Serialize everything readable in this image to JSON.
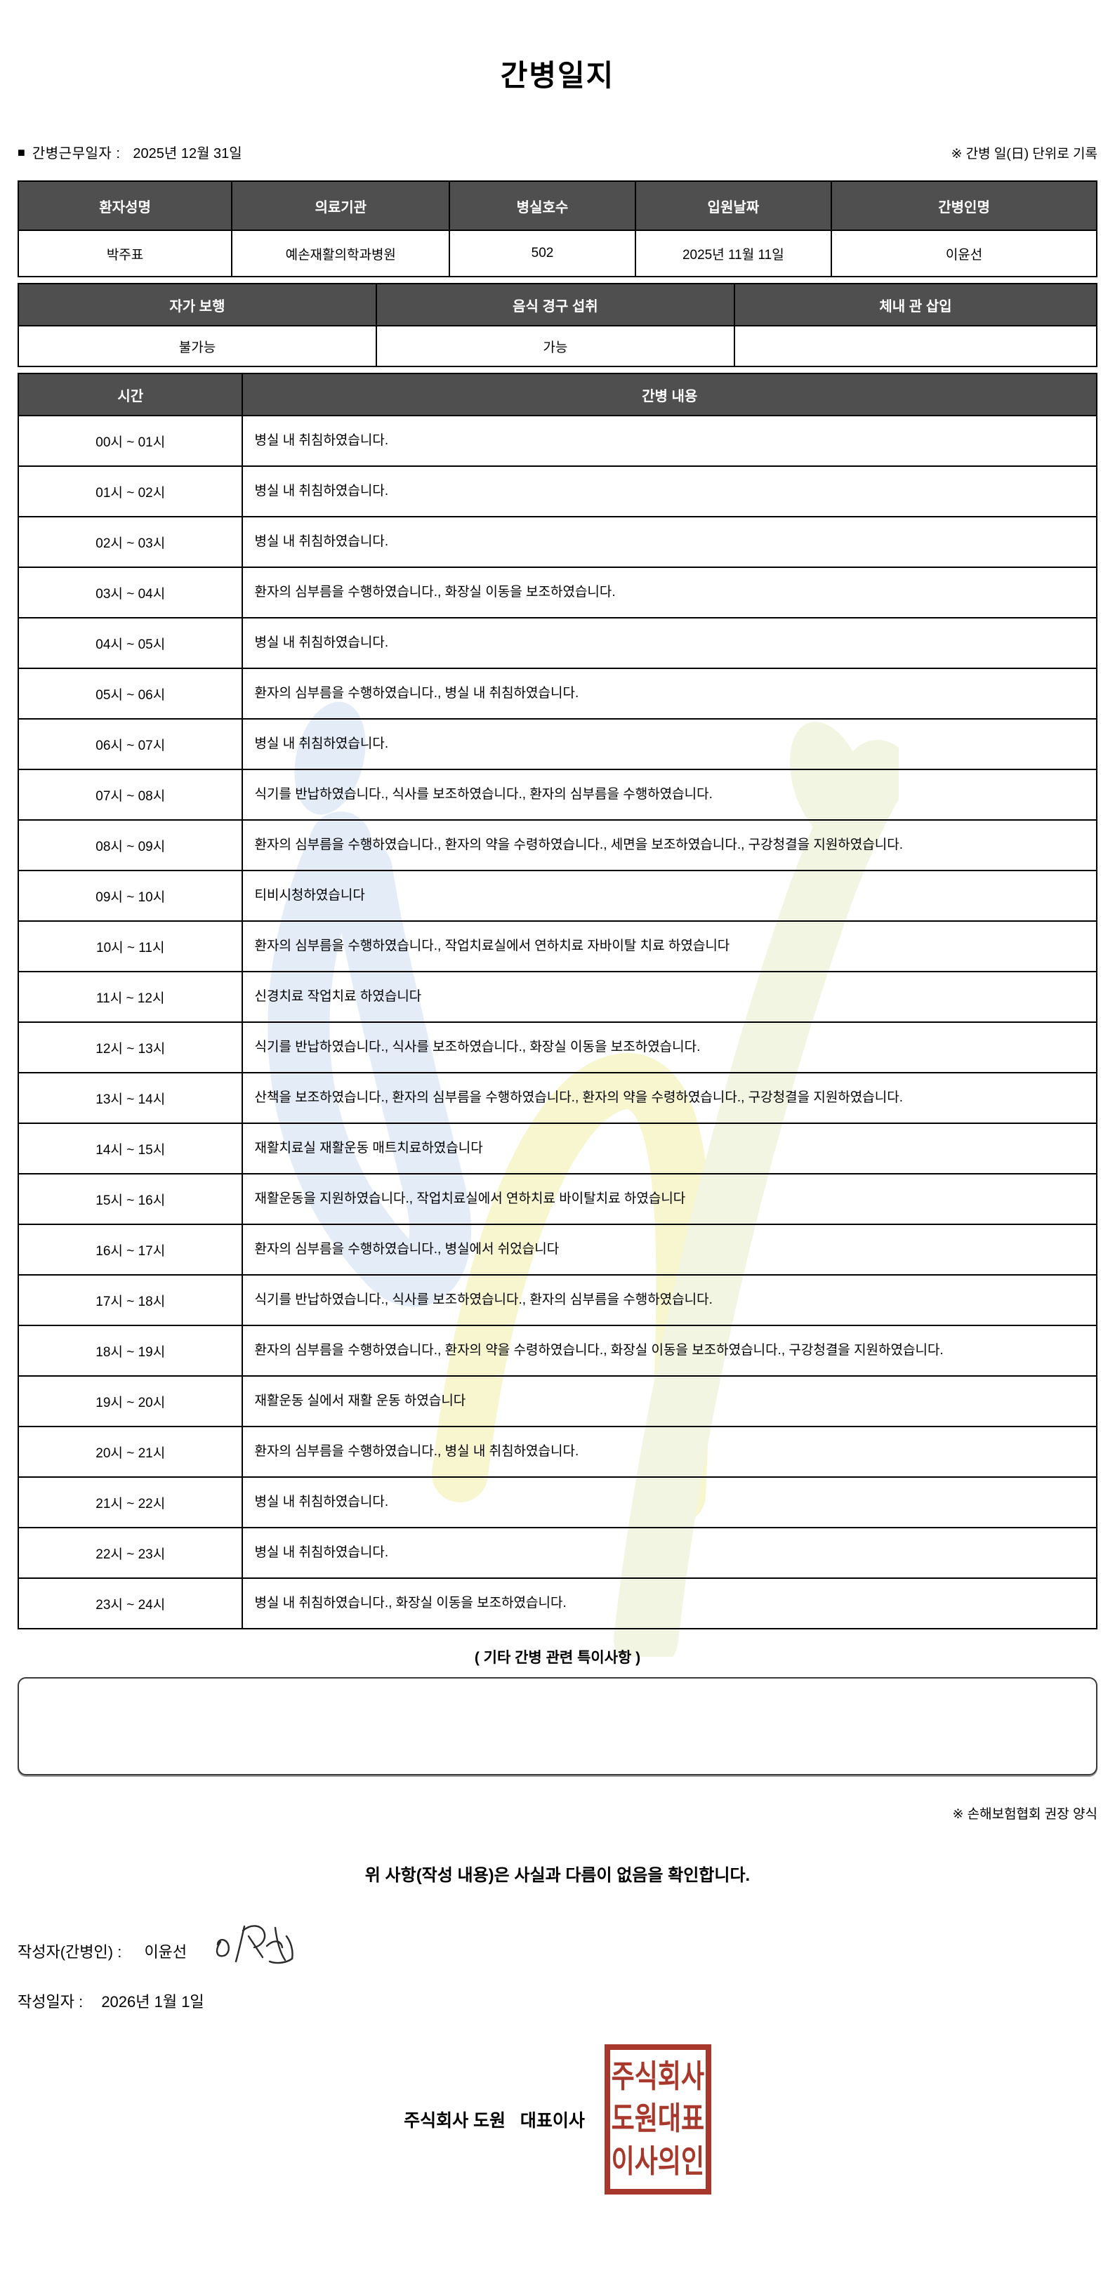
{
  "page": {
    "title": "간병일지",
    "work_date_marker": "■",
    "work_date_label": "간병근무일자  :",
    "work_date_value": "2025년 12월 31일",
    "unit_note": "※ 간병 일(日) 단위로 기록",
    "form_note": "※ 손해보험협회 권장 양식",
    "confirmation": "위 사항(작성 내용)은 사실과 다름이 없음을 확인합니다.",
    "writer_label": "작성자(간병인) : ",
    "writer_name": "이윤선",
    "date_label": "작성일자 : ",
    "date_value": "2026년 1월 1일",
    "company_line": "주식회사 도원   대표이사"
  },
  "info_table": {
    "headers": [
      "환자성명",
      "의료기관",
      "병실호수",
      "입원날짜",
      "간병인명"
    ],
    "values": [
      "박주표",
      "예손재활의학과병원",
      "502",
      "2025년 11월 11일",
      "이윤선"
    ]
  },
  "status_table": {
    "headers": [
      "자가 보행",
      "음식 경구 섭취",
      "체내 관 삽입"
    ],
    "values": [
      "불가능",
      "가능",
      ""
    ]
  },
  "care_table": {
    "headers": [
      "시간",
      "간병 내용"
    ],
    "rows": [
      {
        "time": "00시 ~ 01시",
        "content": "병실 내 취침하였습니다."
      },
      {
        "time": "01시 ~ 02시",
        "content": "병실 내 취침하였습니다."
      },
      {
        "time": "02시 ~ 03시",
        "content": "병실 내 취침하였습니다."
      },
      {
        "time": "03시 ~ 04시",
        "content": "환자의 심부름을 수행하였습니다., 화장실 이동을 보조하였습니다."
      },
      {
        "time": "04시 ~ 05시",
        "content": "병실 내 취침하였습니다."
      },
      {
        "time": "05시 ~ 06시",
        "content": "환자의 심부름을 수행하였습니다., 병실 내 취침하였습니다."
      },
      {
        "time": "06시 ~ 07시",
        "content": "병실 내 취침하였습니다."
      },
      {
        "time": "07시 ~ 08시",
        "content": "식기를 반납하였습니다., 식사를 보조하였습니다., 환자의 심부름을 수행하였습니다."
      },
      {
        "time": "08시 ~ 09시",
        "content": "환자의 심부름을 수행하였습니다., 환자의 약을 수령하였습니다., 세면을 보조하였습니다., 구강청결을 지원하였습니다."
      },
      {
        "time": "09시 ~ 10시",
        "content": "티비시청하였습니다"
      },
      {
        "time": "10시 ~ 11시",
        "content": "환자의 심부름을 수행하였습니다., 작업치료실에서 연하치료 자바이탈 치료 하였습니다"
      },
      {
        "time": "11시 ~ 12시",
        "content": "신경치료 작업치료 하였습니다"
      },
      {
        "time": "12시 ~ 13시",
        "content": "식기를 반납하였습니다., 식사를 보조하였습니다., 화장실 이동을 보조하였습니다."
      },
      {
        "time": "13시 ~ 14시",
        "content": "산책을 보조하였습니다., 환자의 심부름을 수행하였습니다., 환자의 약을 수령하였습니다., 구강청결을 지원하였습니다."
      },
      {
        "time": "14시 ~ 15시",
        "content": "재활치료실 재활운동 매트치료하였습니다"
      },
      {
        "time": "15시 ~ 16시",
        "content": "재활운동을 지원하였습니다., 작업치료실에서 연하치료 바이탈치료 하였습니다"
      },
      {
        "time": "16시 ~ 17시",
        "content": "환자의 심부름을 수행하였습니다., 병실에서 쉬었습니다"
      },
      {
        "time": "17시 ~ 18시",
        "content": "식기를 반납하였습니다., 식사를 보조하였습니다., 환자의 심부름을 수행하였습니다."
      },
      {
        "time": "18시 ~ 19시",
        "content": "환자의 심부름을 수행하였습니다., 환자의 약을 수령하였습니다., 화장실 이동을 보조하였습니다., 구강청결을 지원하였습니다."
      },
      {
        "time": "19시 ~ 20시",
        "content": "재활운동 실에서 재활 운동 하였습니다"
      },
      {
        "time": "20시 ~ 21시",
        "content": "환자의 심부름을 수행하였습니다., 병실 내 취침하였습니다."
      },
      {
        "time": "21시 ~ 22시",
        "content": "병실 내 취침하였습니다."
      },
      {
        "time": "22시 ~ 23시",
        "content": "병실 내 취침하였습니다."
      },
      {
        "time": "23시 ~ 24시",
        "content": "병실 내 취침하였습니다., 화장실 이동을 보조하였습니다."
      }
    ]
  },
  "notes": {
    "label": "( 기타 간병 관련 특이사항 )",
    "content": ""
  },
  "seal": {
    "lines": [
      "주식회사",
      "도원대표",
      "이사의인"
    ],
    "color": "#a8382b"
  },
  "colors": {
    "header_bg": "#4f4f4f",
    "header_text": "#ffffff",
    "border": "#000000",
    "watermark_blue": "#cfe0f1",
    "watermark_yellow": "#f2efa8",
    "watermark_green": "#e9eecb"
  }
}
